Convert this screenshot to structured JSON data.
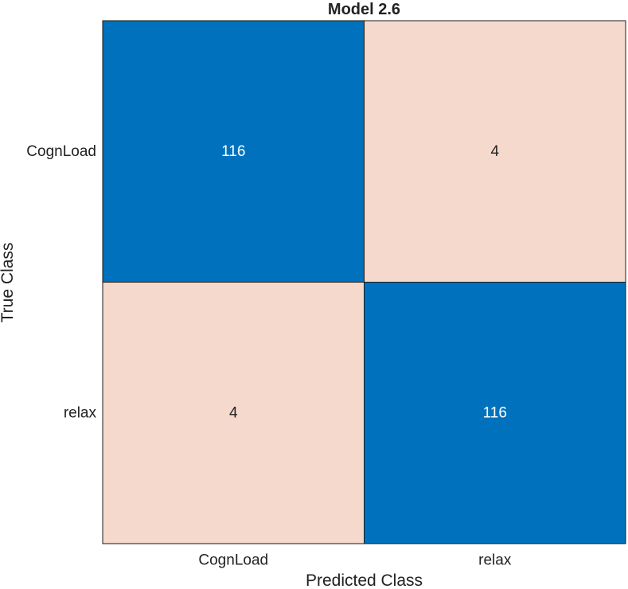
{
  "chart_data": {
    "type": "heatmap",
    "title": "Model 2.6",
    "xlabel": "Predicted Class",
    "ylabel": "True Class",
    "x_categories": [
      "CognLoad",
      "relax"
    ],
    "y_categories": [
      "CognLoad",
      "relax"
    ],
    "matrix": [
      [
        116,
        4
      ],
      [
        4,
        116
      ]
    ],
    "colors": {
      "high": "#0072bd",
      "low": "#f5d9cc",
      "grid": "#1a1a1a",
      "high_text": "#ffffff",
      "low_text": "#222222"
    }
  }
}
